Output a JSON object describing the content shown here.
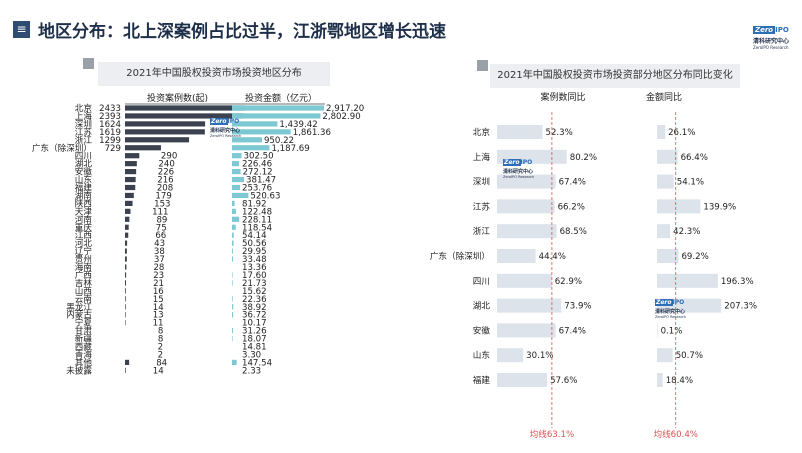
{
  "header": {
    "title": "地区分布：北上深案例占比过半，江浙鄂地区增长迅速",
    "icon_glyph": "≡",
    "logo": {
      "zero": "Zero",
      "ipo": "IPO",
      "cn": "清科研究中心",
      "en": "ZeroIPO Research"
    }
  },
  "watermark": {
    "zero": "Zero",
    "ipo": "IPO",
    "cn": "清科研究中心",
    "en": "ZeroIPO Research"
  },
  "colors": {
    "dark_bar": "#3a4250",
    "cyan_bar": "#7ec8d4",
    "light_bar": "#dde3ea",
    "avg_line": "#d9534f",
    "title_navy": "#1e2f4a"
  },
  "chart_data": [
    {
      "type": "bar",
      "title": "2021年中国股权投资市场投资地区分布",
      "series": [
        {
          "name": "投资案例数(起)",
          "color": "#3a4250",
          "values": [
            2433,
            2393,
            1624,
            1619,
            1299,
            729,
            290,
            240,
            226,
            216,
            208,
            179,
            153,
            111,
            89,
            75,
            66,
            43,
            38,
            37,
            28,
            23,
            21,
            16,
            15,
            14,
            13,
            11,
            8,
            8,
            2,
            2,
            84,
            14
          ]
        },
        {
          "name": "投资金额（亿元）",
          "color": "#7ec8d4",
          "values": [
            2917.2,
            2802.9,
            1439.42,
            1861.36,
            950.22,
            1187.69,
            302.5,
            226.46,
            272.12,
            381.47,
            253.76,
            520.63,
            81.92,
            122.48,
            228.11,
            118.54,
            54.14,
            50.56,
            29.95,
            33.48,
            13.36,
            17.6,
            21.73,
            15.62,
            22.36,
            38.92,
            36.72,
            10.17,
            31.26,
            18.07,
            14.81,
            3.3,
            147.54,
            2.33
          ]
        }
      ],
      "count_labels": [
        "2433",
        "2393",
        "1624",
        "1619",
        "1299",
        "729",
        "290",
        "240",
        "226",
        "216",
        "208",
        "179",
        "153",
        "111",
        "89",
        "75",
        "66",
        "43",
        "38",
        "37",
        "28",
        "23",
        "21",
        "16",
        "15",
        "14",
        "13",
        "11",
        "8",
        "8",
        "2",
        "2",
        "84",
        "14"
      ],
      "amount_labels": [
        "2,917.20",
        "2,802.90",
        "1,439.42",
        "1,861.36",
        "950.22",
        "1,187.69",
        "302.50",
        "226.46",
        "272.12",
        "381.47",
        "253.76",
        "520.63",
        "81.92",
        "122.48",
        "228.11",
        "118.54",
        "54.14",
        "50.56",
        "29.95",
        "33.48",
        "13.36",
        "17.60",
        "21.73",
        "15.62",
        "22.36",
        "38.92",
        "36.72",
        "10.17",
        "31.26",
        "18.07",
        "14.81",
        "3.30",
        "147.54",
        "2.33"
      ],
      "categories": [
        "北京",
        "上海",
        "深圳",
        "江苏",
        "浙江",
        "广东（除深圳）",
        "四川",
        "湖北",
        "安徽",
        "山东",
        "福建",
        "湖南",
        "陕西",
        "天津",
        "河南",
        "重庆",
        "江西",
        "河北",
        "辽宁",
        "贵州",
        "海南",
        "广西",
        "吉林",
        "山西",
        "云南",
        "黑龙江",
        "内蒙古",
        "宁夏",
        "甘肃",
        "新疆",
        "西藏",
        "青海",
        "其他",
        "未披露"
      ]
    },
    {
      "type": "bar",
      "title": "2021年中国股权投资市场投资部分地区分布同比变化",
      "categories": [
        "北京",
        "上海",
        "深圳",
        "江苏",
        "浙江",
        "广东（除深圳）",
        "四川",
        "湖北",
        "安徽",
        "山东",
        "福建"
      ],
      "series": [
        {
          "name": "案例数同比",
          "values": [
            52.3,
            80.2,
            67.4,
            66.2,
            68.5,
            44.4,
            62.9,
            73.9,
            67.4,
            30.1,
            57.6
          ],
          "labels": [
            "52.3%",
            "80.2%",
            "67.4%",
            "66.2%",
            "68.5%",
            "44.4%",
            "62.9%",
            "73.9%",
            "67.4%",
            "30.1%",
            "57.6%"
          ],
          "avg": 63.1,
          "avg_label": "均线63.1%"
        },
        {
          "name": "金额同比",
          "values": [
            26.1,
            66.4,
            54.1,
            139.9,
            42.3,
            69.2,
            196.3,
            207.3,
            0.1,
            50.7,
            18.4
          ],
          "labels": [
            "26.1%",
            "66.4%",
            "54.1%",
            "139.9%",
            "42.3%",
            "69.2%",
            "196.3%",
            "207.3%",
            "0.1%",
            "50.7%",
            "18.4%"
          ],
          "avg": 60.4,
          "avg_label": "均线60.4%"
        }
      ]
    }
  ]
}
